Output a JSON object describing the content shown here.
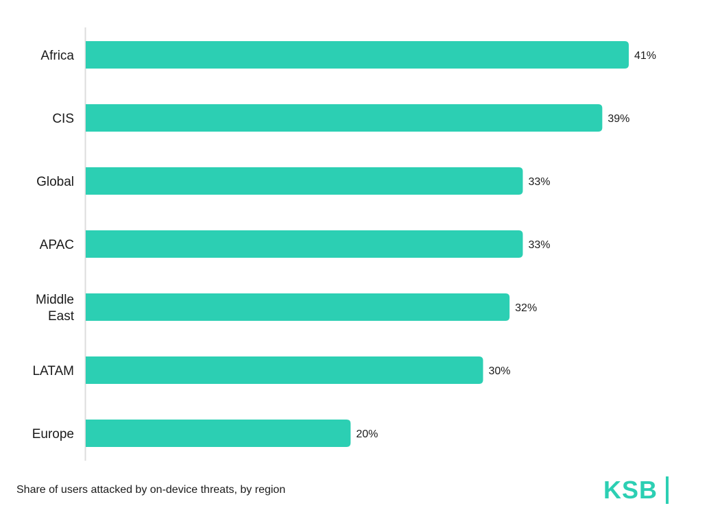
{
  "chart_data": {
    "type": "bar",
    "orientation": "horizontal",
    "categories": [
      "Africa",
      "CIS",
      "Global",
      "APAC",
      "Middle East",
      "LATAM",
      "Europe"
    ],
    "values": [
      41,
      39,
      33,
      33,
      32,
      30,
      20
    ],
    "value_labels": [
      "41%",
      "39%",
      "33%",
      "33%",
      "32%",
      "30%",
      "20%"
    ],
    "unit": "%",
    "xlim": [
      0,
      41
    ],
    "grid": false,
    "bar_color": "#2ccfb3"
  },
  "caption": "Share of users attacked by on-device threats, by region",
  "logo": {
    "text": "KSB",
    "color": "#2ccfb3"
  }
}
